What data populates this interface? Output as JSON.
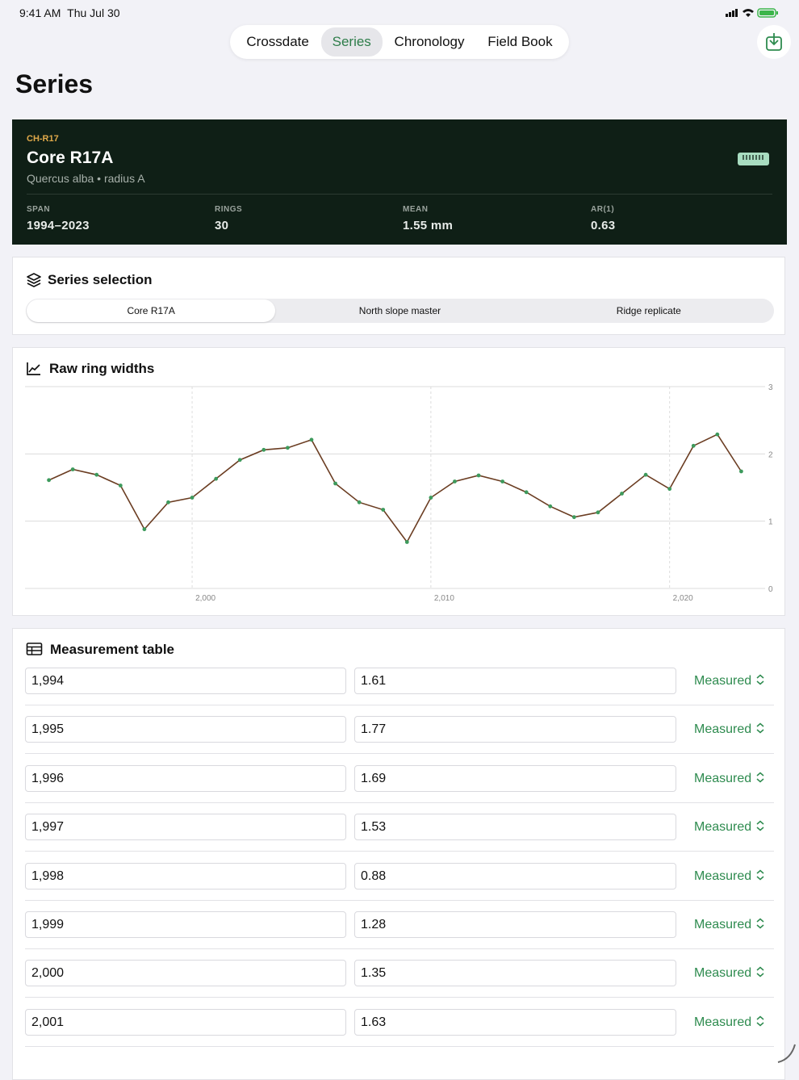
{
  "status_bar": {
    "time": "9:41 AM",
    "date": "Thu Jul 30"
  },
  "nav": {
    "tabs": [
      "Crossdate",
      "Series",
      "Chronology",
      "Field Book"
    ],
    "selected": 1
  },
  "page_title": "Series",
  "core_card": {
    "code": "CH-R17",
    "name": "Core R17A",
    "subtitle": "Quercus alba • radius A",
    "stats": [
      {
        "label": "SPAN",
        "value": "1994–2023"
      },
      {
        "label": "RINGS",
        "value": "30"
      },
      {
        "label": "MEAN",
        "value": "1.55 mm"
      },
      {
        "label": "AR(1)",
        "value": "0.63"
      }
    ]
  },
  "series_selection": {
    "title": "Series selection",
    "options": [
      "Core R17A",
      "North slope master",
      "Ridge replicate"
    ],
    "selected": 0
  },
  "chart_data": {
    "type": "line",
    "title": "Raw ring widths",
    "x": [
      1994,
      1995,
      1996,
      1997,
      1998,
      1999,
      2000,
      2001,
      2002,
      2003,
      2004,
      2005,
      2006,
      2007,
      2008,
      2009,
      2010,
      2011,
      2012,
      2013,
      2014,
      2015,
      2016,
      2017,
      2018,
      2019,
      2020,
      2021,
      2022,
      2023
    ],
    "values": [
      1.61,
      1.77,
      1.69,
      1.53,
      0.88,
      1.28,
      1.35,
      1.63,
      1.91,
      2.06,
      2.09,
      2.21,
      1.56,
      1.28,
      1.17,
      0.69,
      1.35,
      1.59,
      1.68,
      1.59,
      1.43,
      1.22,
      1.06,
      1.13,
      1.41,
      1.69,
      1.48,
      2.12,
      2.29,
      1.74
    ],
    "color": "#6b3d22",
    "marker_color": "#3d9a5c",
    "xlim": [
      1993,
      2024
    ],
    "ylim": [
      0,
      3
    ],
    "xticks": [
      {
        "value": 2000,
        "label": "2,000"
      },
      {
        "value": 2010,
        "label": "2,010"
      },
      {
        "value": 2020,
        "label": "2,020"
      }
    ],
    "yticks": [
      0,
      1,
      2,
      3
    ],
    "grid": true
  },
  "measurement_table": {
    "title": "Measurement table",
    "rows": [
      [
        "1,994",
        "1.61",
        "Measured"
      ],
      [
        "1,995",
        "1.77",
        "Measured"
      ],
      [
        "1,996",
        "1.69",
        "Measured"
      ],
      [
        "1,997",
        "1.53",
        "Measured"
      ],
      [
        "1,998",
        "0.88",
        "Measured"
      ],
      [
        "1,999",
        "1.28",
        "Measured"
      ],
      [
        "2,000",
        "1.35",
        "Measured"
      ],
      [
        "2,001",
        "1.63",
        "Measured"
      ]
    ]
  }
}
